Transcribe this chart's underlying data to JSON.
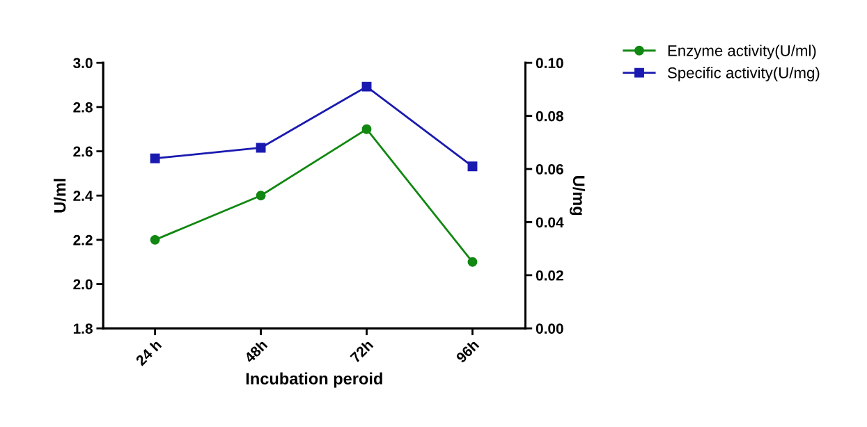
{
  "chart_data": {
    "type": "line",
    "xlabel": "Incubation peroid",
    "ylabel": "U/ml",
    "y2label": "U/mg",
    "categories": [
      "24 h",
      "48h",
      "72h",
      "96h"
    ],
    "series": [
      {
        "name": "Enzyme activity(U/ml)",
        "color": "#118811",
        "marker": "circle",
        "values": [
          2.2,
          2.4,
          2.7,
          2.1
        ]
      },
      {
        "name": "Specific activity(U/mg)",
        "color": "#1a1ab0",
        "marker": "square",
        "axis": "y2",
        "values": [
          0.064,
          0.068,
          0.091,
          0.061
        ]
      }
    ],
    "ylim": [
      1.8,
      3.0
    ],
    "yticks": [
      {
        "value": 1.8,
        "label": "1.8"
      },
      {
        "value": 2.0,
        "label": "2.0"
      },
      {
        "value": 2.2,
        "label": "2.2"
      },
      {
        "value": 2.4,
        "label": "2.4"
      },
      {
        "value": 2.6,
        "label": "2.6"
      },
      {
        "value": 2.8,
        "label": "2.8"
      },
      {
        "value": 3.0,
        "label": "3.0"
      }
    ],
    "y2lim": [
      0,
      0.1
    ],
    "y2ticks": [
      {
        "value": 0,
        "label": "0.00"
      },
      {
        "value": 0.02,
        "label": "0.02"
      },
      {
        "value": 0.04,
        "label": "0.04"
      },
      {
        "value": 0.06,
        "label": "0.06"
      },
      {
        "value": 0.08,
        "label": "0.08"
      },
      {
        "value": 0.1,
        "label": "0.10"
      }
    ],
    "grid": false,
    "legend": "top right",
    "line_style": "solid"
  }
}
